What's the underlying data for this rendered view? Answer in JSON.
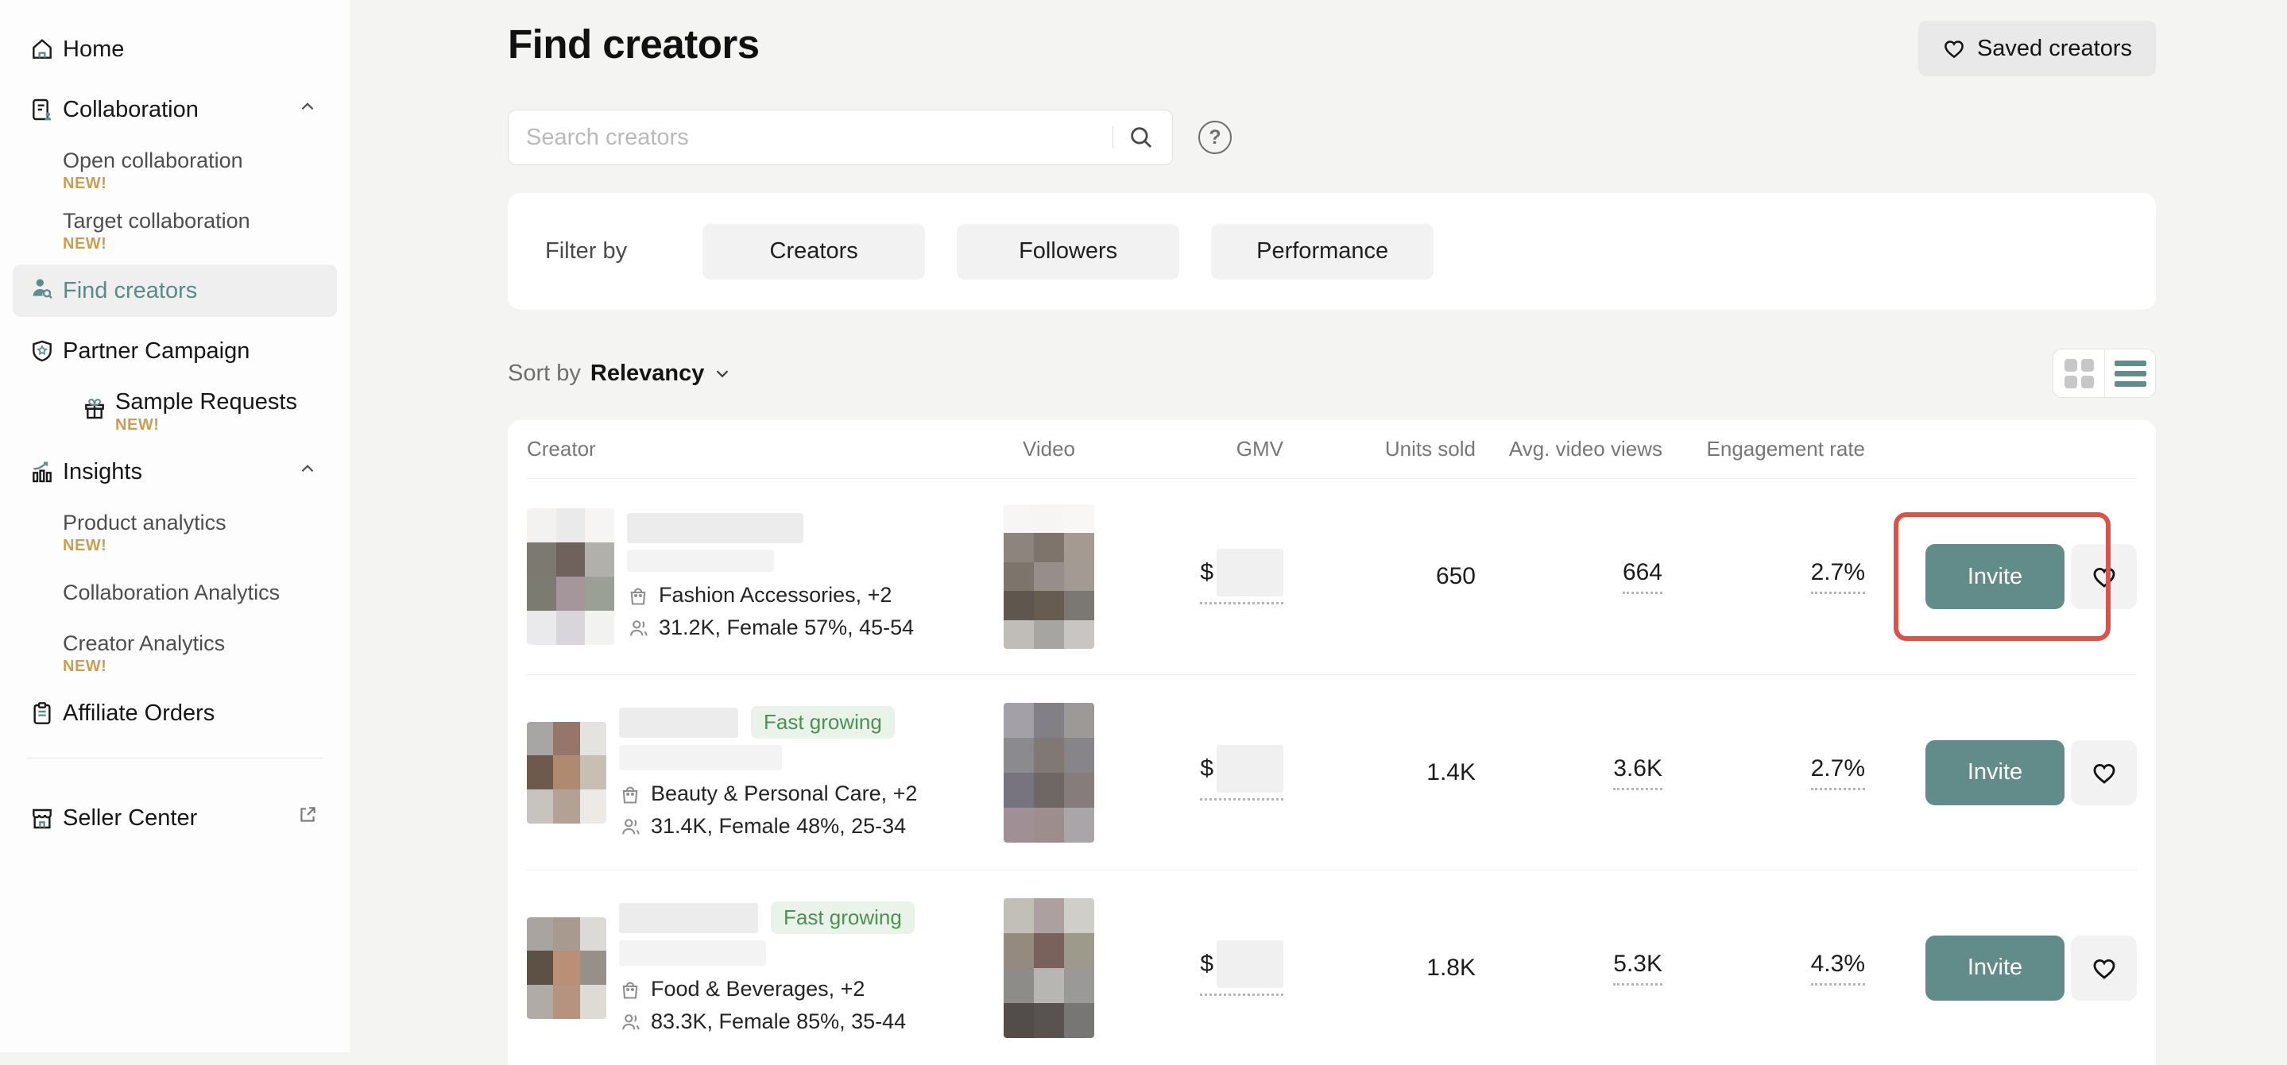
{
  "sidebar": {
    "items": [
      {
        "label": "Home"
      },
      {
        "label": "Collaboration"
      },
      {
        "label": "Open collaboration",
        "badge": "NEW!"
      },
      {
        "label": "Target collaboration",
        "badge": "NEW!"
      },
      {
        "label": "Find creators"
      },
      {
        "label": "Partner Campaign"
      },
      {
        "label": "Sample Requests",
        "badge": "NEW!"
      },
      {
        "label": "Insights"
      },
      {
        "label": "Product analytics",
        "badge": "NEW!"
      },
      {
        "label": "Collaboration Analytics"
      },
      {
        "label": "Creator Analytics",
        "badge": "NEW!"
      },
      {
        "label": "Affiliate Orders"
      },
      {
        "label": "Seller Center"
      }
    ]
  },
  "header": {
    "title": "Find creators",
    "saved_button": "Saved creators"
  },
  "search": {
    "placeholder": "Search creators"
  },
  "icons": {
    "help": "?"
  },
  "filters": {
    "label": "Filter by",
    "buttons": [
      "Creators",
      "Followers",
      "Performance"
    ]
  },
  "sort": {
    "label": "Sort by",
    "value": "Relevancy"
  },
  "table": {
    "columns": [
      "Creator",
      "Video",
      "GMV",
      "Units sold",
      "Avg. video views",
      "Engagement rate"
    ]
  },
  "rows": [
    {
      "badge": "",
      "category": "Fashion Accessories, +2",
      "audience": "31.2K, Female 57%, 45-54",
      "gmv_prefix": "$",
      "units": "650",
      "avg_views": "664",
      "engagement": "2.7%",
      "invite": "Invite",
      "avatar_pixels": [
        "#f3f2f1",
        "#ebeaea",
        "#f6f5f4",
        "#7c7971",
        "#6f625d",
        "#b2b0ab",
        "#7b7b71",
        "#a5969c",
        "#9aa096",
        "#eae9ec",
        "#d9d6db",
        "#f2f2f1"
      ],
      "video_pixels": [
        "#f7f6f5",
        "#f6f5f3",
        "#f8f7f6",
        "#8d847e",
        "#7f746c",
        "#a59a92",
        "#7d746c",
        "#978e89",
        "#a39a93",
        "#5f574e",
        "#665c50",
        "#7b7772",
        "#c0bdb9",
        "#a7a5a2",
        "#c8c5c2"
      ]
    },
    {
      "badge": "Fast growing",
      "category": "Beauty & Personal Care, +2",
      "audience": "31.4K, Female 48%, 25-34",
      "gmv_prefix": "$",
      "units": "1.4K",
      "avg_views": "3.6K",
      "engagement": "2.7%",
      "invite": "Invite",
      "avatar_pixels": [
        "#a8a6a4",
        "#96756a",
        "#e5e3e0",
        "#6e5a4c",
        "#b08a6e",
        "#c8bfb4",
        "#c7c3bf",
        "#b4a195",
        "#edeae6"
      ],
      "video_pixels": [
        "#a3a1a7",
        "#828084",
        "#9d9996",
        "#8b8b8f",
        "#7f7873",
        "#888588",
        "#77737f",
        "#6f6763",
        "#857c7b",
        "#a08f94",
        "#9e8d8d",
        "#aaa5a8"
      ]
    },
    {
      "badge": "Fast growing",
      "category": "Food & Beverages, +2",
      "audience": "83.3K, Female 85%, 35-44",
      "gmv_prefix": "$",
      "units": "1.8K",
      "avg_views": "5.3K",
      "engagement": "4.3%",
      "invite": "Invite",
      "avatar_pixels": [
        "#a8a5a0",
        "#a89a8e",
        "#dcdad6",
        "#5d5146",
        "#b98f75",
        "#969089",
        "#b0aba6",
        "#b6937e",
        "#dedbd5"
      ],
      "video_pixels": [
        "#c2beb8",
        "#ada0a0",
        "#d0cec9",
        "#948b7e",
        "#7a625c",
        "#9d9a8c",
        "#8d8c88",
        "#b8b6b3",
        "#9a9997",
        "#524d4a",
        "#585350",
        "#787674"
      ]
    }
  ],
  "colors": {
    "accent_teal": "#618c89",
    "highlight_red": "#d9534b",
    "new_badge_gold": "#c89e52",
    "fast_growing_green": "#4e8f53"
  }
}
